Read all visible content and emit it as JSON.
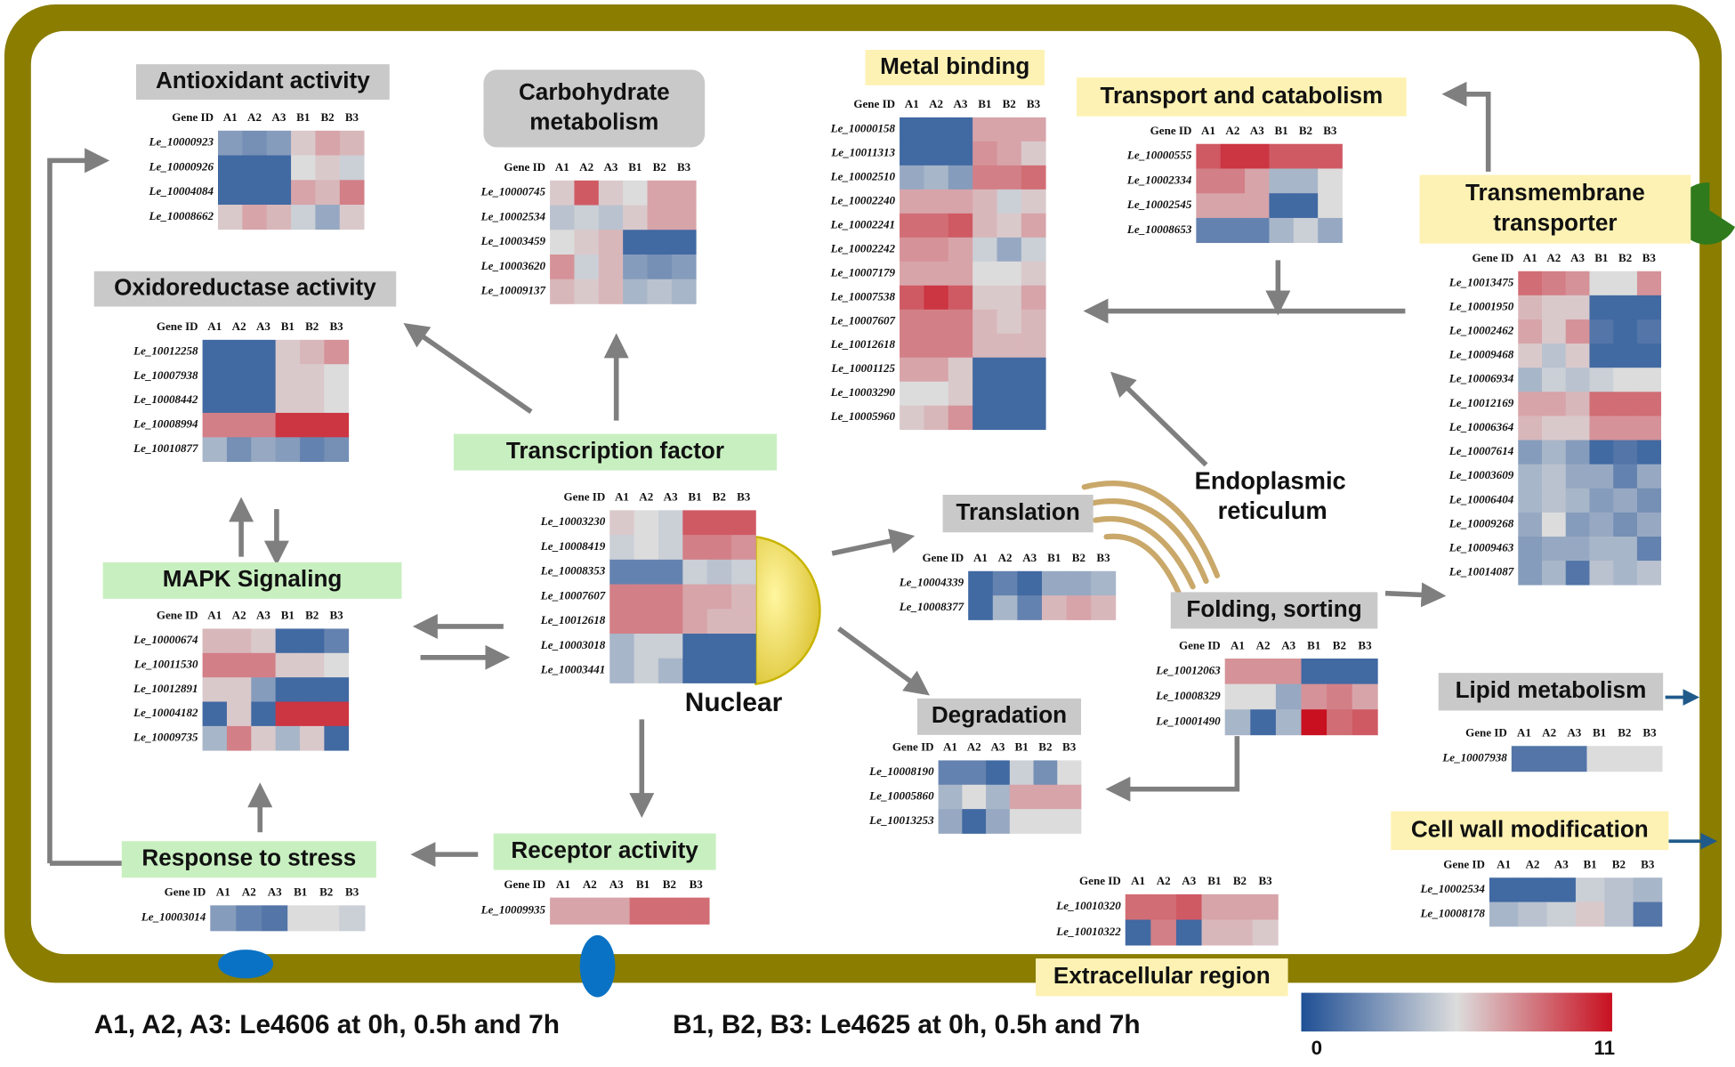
{
  "columns": [
    "Gene ID",
    "A1",
    "A2",
    "A3",
    "B1",
    "B2",
    "B3"
  ],
  "panels": [
    {
      "title_lines": [
        "Antioxidant activity"
      ],
      "title_color": "#c9c9c9",
      "genes": [
        "Le_10000923",
        "Le_10000926",
        "Le_10004084",
        "Le_10008662"
      ],
      "values": [
        [
          3,
          2.5,
          3,
          6,
          7,
          6.5
        ],
        [
          1,
          1,
          1,
          5.5,
          6,
          5
        ],
        [
          1,
          1,
          1,
          7,
          6.5,
          8
        ],
        [
          6,
          7,
          6.5,
          5,
          3.5,
          6
        ]
      ]
    },
    {
      "title_lines": [
        "Carbohydrate",
        "metabolism"
      ],
      "title_color": "#c9c9c9",
      "genes": [
        "Le_10000745",
        "Le_10002534",
        "Le_10003459",
        "Le_10003620",
        "Le_10009137"
      ],
      "values": [
        [
          6,
          9,
          6,
          5.5,
          7,
          7
        ],
        [
          4.5,
          5,
          4.5,
          6,
          7,
          7
        ],
        [
          5.5,
          6,
          6.5,
          1,
          1,
          1
        ],
        [
          7.5,
          5,
          6.5,
          3,
          2.5,
          3
        ],
        [
          6.5,
          6,
          6.5,
          4,
          4.5,
          4
        ]
      ]
    },
    {
      "title_lines": [
        "Oxidoreductase activity"
      ],
      "title_color": "#c9c9c9",
      "genes": [
        "Le_10012258",
        "Le_10007938",
        "Le_10008442",
        "Le_10008994",
        "Le_10010877"
      ],
      "values": [
        [
          1,
          1,
          1,
          6,
          6.5,
          7.5
        ],
        [
          1,
          1,
          1,
          6,
          6,
          5.5
        ],
        [
          1,
          1,
          1,
          6,
          6,
          5.5
        ],
        [
          8,
          8,
          8,
          10,
          10,
          10
        ],
        [
          4,
          2.5,
          3.5,
          3,
          2,
          2.5
        ]
      ]
    },
    {
      "title_lines": [
        "MAPK Signaling"
      ],
      "title_color": "#c8efc0",
      "genes": [
        "Le_10000674",
        "Le_10011530",
        "Le_10012891",
        "Le_10004182",
        "Le_10009735"
      ],
      "values": [
        [
          6.5,
          6.5,
          6,
          1,
          1,
          2
        ],
        [
          8,
          8,
          8,
          6,
          6,
          5.5
        ],
        [
          6,
          6,
          3,
          1,
          1,
          1
        ],
        [
          1,
          6,
          1,
          10,
          10,
          10
        ],
        [
          4,
          8,
          6,
          4,
          6,
          1
        ]
      ]
    },
    {
      "title_lines": [
        "Response to stress"
      ],
      "title_color": "#c8efc0",
      "genes": [
        "Le_10003014"
      ],
      "values": [
        [
          3,
          2,
          1.5,
          5.5,
          5.5,
          5
        ]
      ]
    },
    {
      "title_lines": [
        "Receptor activity"
      ],
      "title_color": "#c8efc0",
      "genes": [
        "Le_10009935"
      ],
      "values": [
        [
          7,
          7,
          7,
          8.5,
          8.5,
          8.5
        ]
      ]
    },
    {
      "title_lines": [
        "Transcription factor"
      ],
      "title_color": "#c8efc0",
      "genes": [
        "Le_10003230",
        "Le_10008419",
        "Le_10008353",
        "Le_10007607",
        "Le_10012618",
        "Le_10003018",
        "Le_10003441"
      ],
      "values": [
        [
          6,
          5.5,
          5,
          9,
          9,
          9
        ],
        [
          5,
          5.5,
          5,
          8,
          8,
          7.5
        ],
        [
          2,
          2,
          2,
          5,
          4.5,
          5
        ],
        [
          8,
          8,
          8,
          7,
          7,
          6.5
        ],
        [
          8,
          8,
          8,
          7,
          6.5,
          6.5
        ],
        [
          4,
          5,
          5,
          1,
          1,
          1
        ],
        [
          4,
          5,
          4,
          1,
          1,
          1
        ]
      ]
    },
    {
      "title_lines": [
        "Metal binding"
      ],
      "title_color": "#fdf2b3",
      "genes": [
        "Le_10000158",
        "Le_10011313",
        "Le_10002510",
        "Le_10002240",
        "Le_10002241",
        "Le_10002242",
        "Le_10007179",
        "Le_10007538",
        "Le_10007607",
        "Le_10012618",
        "Le_10001125",
        "Le_10003290",
        "Le_10005960"
      ],
      "values": [
        [
          1,
          1,
          1,
          7,
          7,
          7
        ],
        [
          1,
          1,
          1,
          7.5,
          7,
          6
        ],
        [
          3.5,
          4,
          3,
          8,
          8,
          8.5
        ],
        [
          7,
          7,
          7,
          6.5,
          5,
          6
        ],
        [
          8.5,
          8.5,
          9,
          6.5,
          6,
          7
        ],
        [
          7.5,
          7.5,
          7,
          5,
          3.5,
          5
        ],
        [
          7,
          7,
          7,
          5.5,
          5.5,
          6
        ],
        [
          9,
          10,
          9,
          6,
          6,
          7
        ],
        [
          8,
          8,
          8,
          6.5,
          6,
          6.5
        ],
        [
          8,
          8,
          8,
          6.5,
          6.5,
          6.5
        ],
        [
          7,
          7,
          6,
          1,
          1,
          1
        ],
        [
          5.5,
          5.5,
          6,
          1,
          1,
          1
        ],
        [
          6,
          6.5,
          7.5,
          1,
          1,
          1
        ]
      ]
    },
    {
      "title_lines": [
        "Transport and catabolism"
      ],
      "title_color": "#fdf2b3",
      "genes": [
        "Le_10000555",
        "Le_10002334",
        "Le_10002545",
        "Le_10008653"
      ],
      "values": [
        [
          9,
          10,
          10,
          9,
          9,
          9
        ],
        [
          8,
          8,
          7,
          4,
          4,
          5.5
        ],
        [
          7,
          7,
          7,
          1,
          1,
          5.5
        ],
        [
          2,
          2,
          2,
          4,
          5,
          3.5
        ]
      ]
    },
    {
      "title_lines": [
        "Transmembrane",
        "transporter"
      ],
      "title_color": "#fdf2b3",
      "genes": [
        "Le_10013475",
        "Le_10001950",
        "Le_10002462",
        "Le_10009468",
        "Le_10006934",
        "Le_10012169",
        "Le_10006364",
        "Le_10007614",
        "Le_10003609",
        "Le_10006404",
        "Le_10009268",
        "Le_10009463",
        "Le_10014087"
      ],
      "values": [
        [
          8.5,
          8,
          7.5,
          5.5,
          5.5,
          7.5
        ],
        [
          6.5,
          6,
          6,
          1,
          1,
          1
        ],
        [
          7,
          6,
          7.5,
          1.5,
          1,
          1.5
        ],
        [
          6,
          4.5,
          6,
          1,
          1,
          1
        ],
        [
          4,
          5,
          4.5,
          5,
          5.5,
          5.5
        ],
        [
          7,
          7,
          6.5,
          8.5,
          8.5,
          8.5
        ],
        [
          6.5,
          6,
          6,
          7.5,
          7.5,
          7.5
        ],
        [
          3,
          4,
          3,
          1,
          1.5,
          1
        ],
        [
          4,
          4.5,
          3.5,
          3.5,
          2,
          3.5
        ],
        [
          4,
          4.5,
          4,
          3,
          3.5,
          2.5
        ],
        [
          3.5,
          5.5,
          3,
          3.5,
          2.5,
          3.5
        ],
        [
          3,
          3.5,
          3.5,
          4,
          4,
          2
        ],
        [
          3,
          4,
          1.5,
          4.5,
          4,
          4.5
        ]
      ]
    },
    {
      "title_lines": [
        "Translation"
      ],
      "title_color": "#c9c9c9",
      "genes": [
        "Le_10004339",
        "Le_10008377"
      ],
      "values": [
        [
          1,
          2,
          1,
          3.5,
          3.5,
          4
        ],
        [
          1,
          4,
          2,
          6.5,
          7,
          6.5
        ]
      ]
    },
    {
      "title_lines": [
        "Degradation"
      ],
      "title_color": "#c9c9c9",
      "genes": [
        "Le_10008190",
        "Le_10005860",
        "Le_10013253"
      ],
      "values": [
        [
          2,
          2,
          1,
          5,
          2.5,
          5.5
        ],
        [
          4,
          5.5,
          4,
          7,
          7,
          7
        ],
        [
          3.5,
          1,
          3.5,
          5.5,
          5.5,
          5.5
        ]
      ]
    },
    {
      "title_lines": [
        "Folding, sorting"
      ],
      "title_color": "#c9c9c9",
      "genes": [
        "Le_10012063",
        "Le_10008329",
        "Le_10001490"
      ],
      "values": [
        [
          7.5,
          7.5,
          7.5,
          1,
          1,
          1
        ],
        [
          5.5,
          5.5,
          3.5,
          7.5,
          8,
          7
        ],
        [
          4,
          1,
          4,
          11,
          8.5,
          9
        ]
      ]
    },
    {
      "title_lines": [
        "Lipid metabolism"
      ],
      "title_color": "#c9c9c9",
      "genes": [
        "Le_10007938"
      ],
      "values": [
        [
          1.5,
          1.5,
          1.5,
          5.5,
          5.5,
          5.5
        ]
      ]
    },
    {
      "title_lines": [
        "Cell wall modification"
      ],
      "title_color": "#fdf2b3",
      "genes": [
        "Le_10002534",
        "Le_10008178"
      ],
      "values": [
        [
          1,
          1,
          1,
          5,
          4.5,
          4
        ],
        [
          4,
          4.5,
          5,
          6,
          4.5,
          1.5
        ]
      ]
    },
    {
      "title_lines": [
        "Extracellular region"
      ],
      "title_color": "#fdf2b3",
      "genes": [
        "Le_10010320",
        "Le_10010322"
      ],
      "values": [
        [
          8.5,
          8.5,
          9,
          7,
          7,
          7
        ],
        [
          1,
          8,
          1,
          6.5,
          6.5,
          6
        ]
      ]
    }
  ],
  "labels": {
    "nuclear": "Nuclear",
    "er": [
      "Endoplasmic",
      "reticulum"
    ]
  },
  "legend": {
    "a": "A1, A2, A3: Le4606 at 0h, 0.5h and 7h",
    "b": "B1, B2, B3: Le4625 at 0h, 0.5h and 7h"
  },
  "colorbar": {
    "ticks": [
      0,
      11
    ],
    "colors": [
      "#1f4f95",
      "#dcdcdc",
      "#c81020"
    ]
  }
}
